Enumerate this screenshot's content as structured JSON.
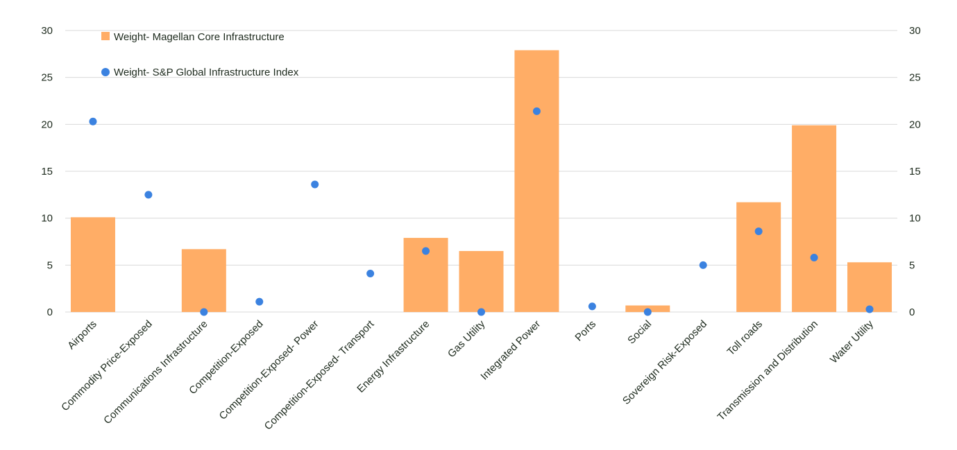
{
  "chart_data": {
    "type": "bar+scatter",
    "categories": [
      "Airports",
      "Commodity Price-Exposed",
      "Communications Infrastructure",
      "Competition-Exposed",
      "Competition-Exposed- Power",
      "Competition-Exposed- Transport",
      "Energy Infrastructure",
      "Gas Utility",
      "Integrated Power",
      "Ports",
      "Social",
      "Sovereign Risk-Exposed",
      "Toll roads",
      "Transmission and Distribution",
      "Water Utility"
    ],
    "series": [
      {
        "name": "Weight- Magellan Core Infrastructure",
        "type": "bar",
        "color": "#ffad66",
        "values": [
          10.1,
          0,
          6.7,
          0,
          0,
          0,
          7.9,
          6.5,
          27.9,
          0,
          0.7,
          0,
          11.7,
          19.9,
          5.3
        ]
      },
      {
        "name": "Weight- S&P Global Infrastructure Index",
        "type": "scatter",
        "color": "#3b82e0",
        "values": [
          20.3,
          12.5,
          0,
          1.1,
          13.6,
          4.1,
          6.5,
          0,
          21.4,
          0.6,
          0,
          5.0,
          8.6,
          5.8,
          0.3
        ]
      }
    ],
    "ylim": [
      0,
      30
    ],
    "yticks": [
      0,
      5,
      10,
      15,
      20,
      25,
      30
    ],
    "secondary_y_axis": true,
    "grid": true,
    "legend": "top-left"
  }
}
